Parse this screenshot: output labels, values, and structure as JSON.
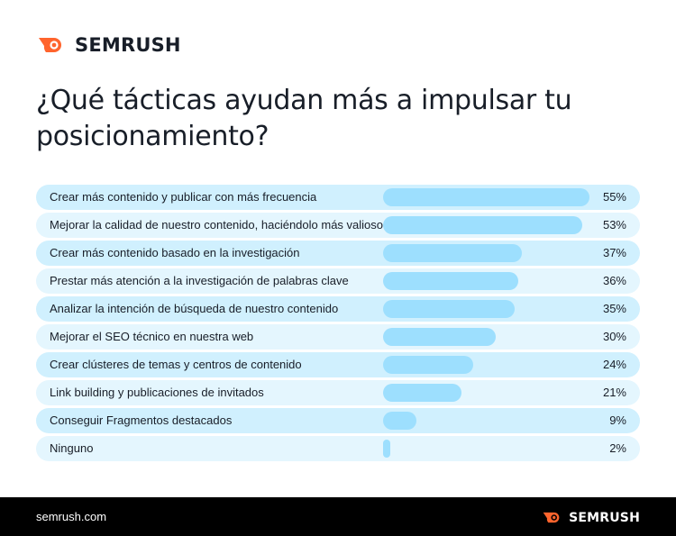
{
  "brand": {
    "name": "SEMRUSH",
    "accent": "#ff642d",
    "url": "semrush.com"
  },
  "title": "¿Qué tácticas ayudan más a impulsar tu posicionamiento?",
  "colors": {
    "row_odd": "#d0f0fe",
    "row_even": "#e4f6fe",
    "bar": "#9ddffe",
    "text": "#181e28",
    "footer_bg": "#000000"
  },
  "chart_data": {
    "type": "bar",
    "orientation": "horizontal",
    "xlim": [
      0,
      55
    ],
    "categories": [
      "Crear más contenido y publicar con más frecuencia",
      "Mejorar la calidad de nuestro contenido, haciéndolo más valioso",
      "Crear más contenido basado en la investigación",
      "Prestar más atención a la investigación de palabras clave",
      "Analizar la intención de búsqueda de nuestro contenido",
      "Mejorar el SEO técnico en nuestra web",
      "Crear clústeres de temas y centros de contenido",
      "Link building y publicaciones de invitados",
      "Conseguir Fragmentos destacados",
      "Ninguno"
    ],
    "values": [
      55,
      53,
      37,
      36,
      35,
      30,
      24,
      21,
      9,
      2
    ],
    "value_labels": [
      "55%",
      "53%",
      "37%",
      "36%",
      "35%",
      "30%",
      "24%",
      "21%",
      "9%",
      "2%"
    ]
  }
}
